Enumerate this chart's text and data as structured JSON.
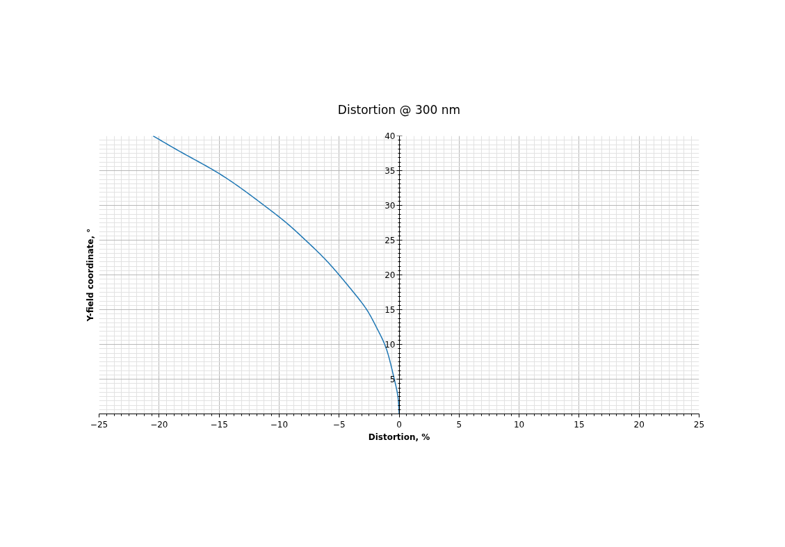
{
  "chart_data": {
    "type": "line",
    "title": "Distortion @ 300 nm",
    "xlabel": "Distortion, %",
    "ylabel": "Y-field coordinate, °",
    "x": [
      0,
      -0.1,
      -0.4,
      -0.75,
      -1.2,
      -1.9,
      -2.7,
      -3.8,
      -5.0,
      -6.3,
      -7.8,
      -9.4,
      -11.25,
      -13.2,
      -15.4,
      -18.0,
      -20.5
    ],
    "series": [
      {
        "color": "#1f77b4",
        "values": [
          0,
          2.5,
          5,
          7.5,
          10,
          12.5,
          15,
          17.5,
          20,
          22.5,
          25,
          27.5,
          30,
          32.5,
          35,
          37.5,
          40
        ]
      }
    ],
    "xlim": [
      -25,
      25
    ],
    "ylim": [
      0,
      40
    ],
    "xticks": [
      {
        "value": -25,
        "label": "−25"
      },
      {
        "value": -20,
        "label": "−20"
      },
      {
        "value": -15,
        "label": "−15"
      },
      {
        "value": -10,
        "label": "−10"
      },
      {
        "value": -5,
        "label": "−5"
      },
      0,
      5,
      10,
      15,
      20,
      25
    ],
    "yticks": [
      5,
      10,
      15,
      20,
      25,
      30,
      35,
      40
    ],
    "grid": true
  }
}
